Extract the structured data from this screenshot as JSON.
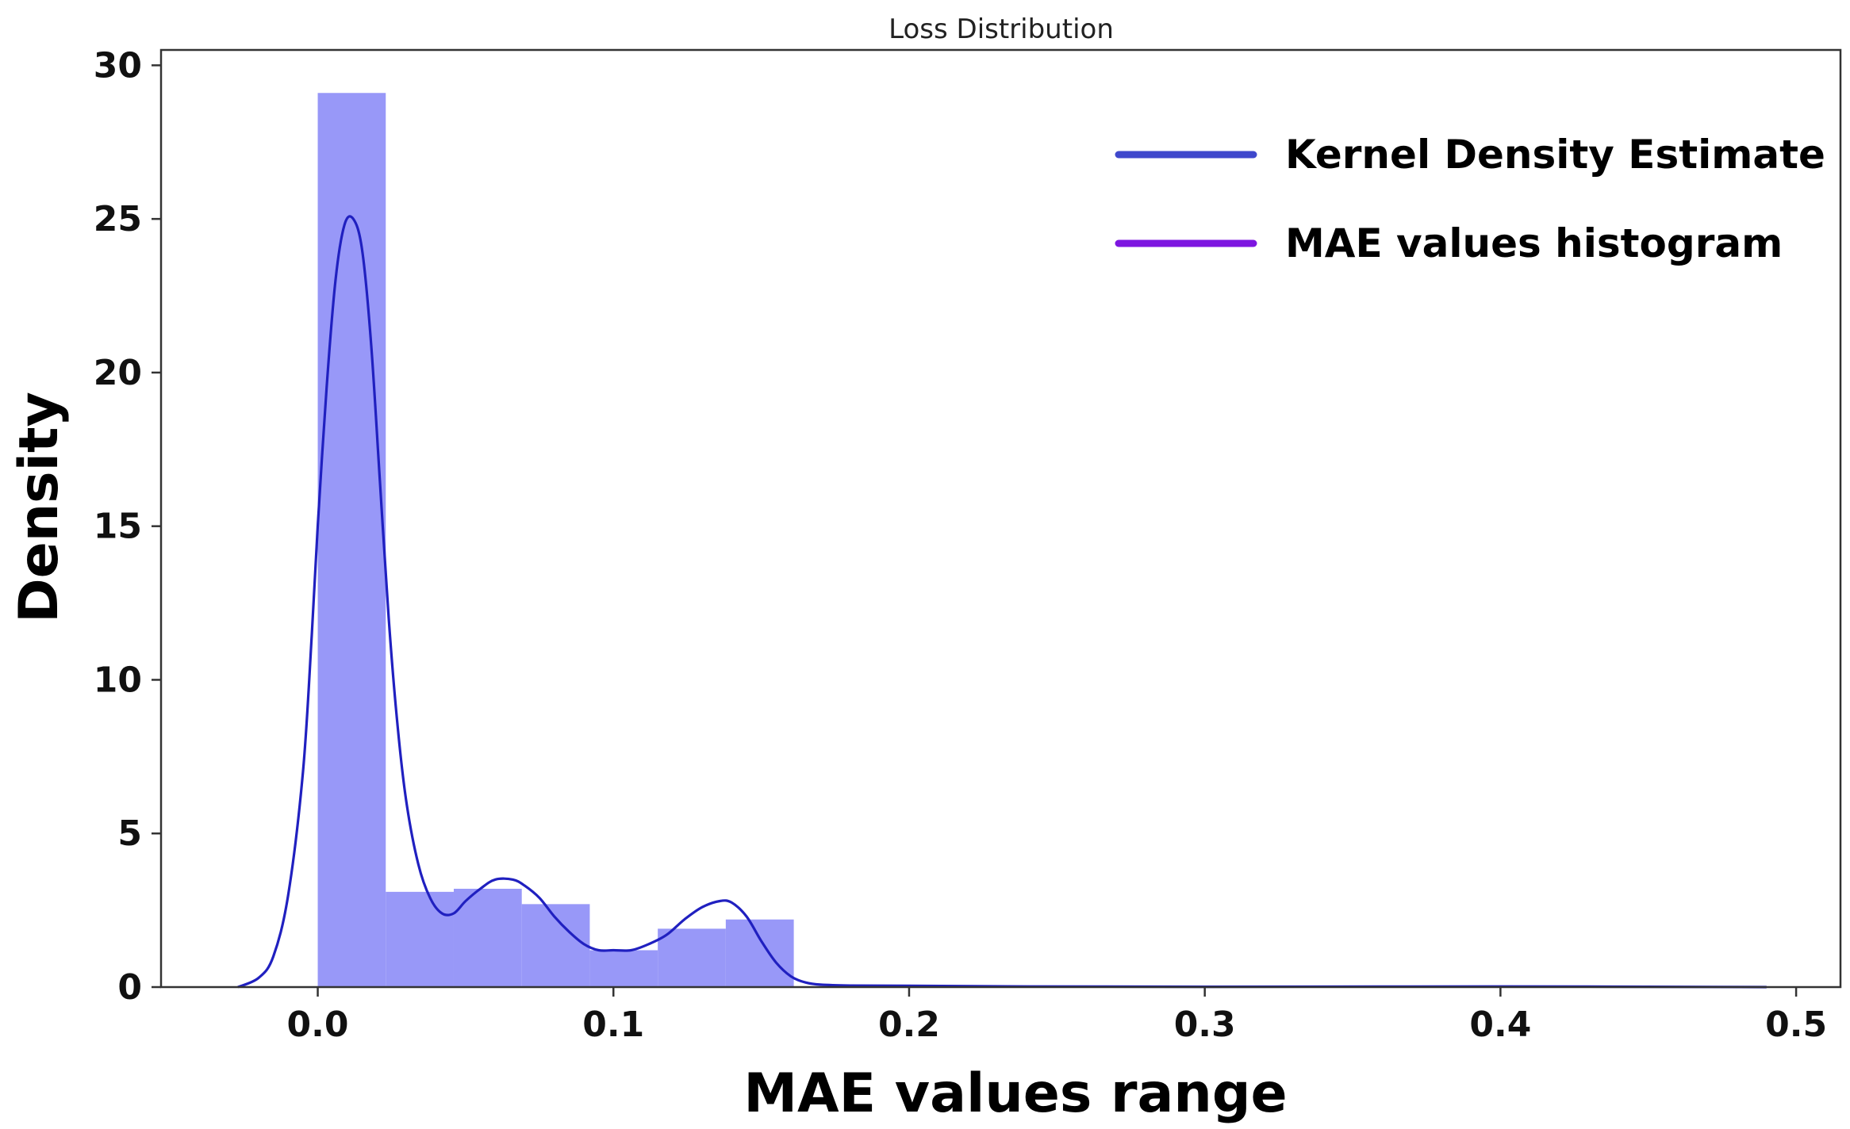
{
  "chart_data": {
    "type": "bar",
    "title": "Loss Distribution",
    "xlabel": "MAE values range",
    "ylabel": "Density",
    "xlim": [
      -0.053,
      0.515
    ],
    "ylim": [
      0,
      30.5
    ],
    "xticks": [
      0.0,
      0.1,
      0.2,
      0.3,
      0.4,
      0.5
    ],
    "xtick_labels": [
      "0.0",
      "0.1",
      "0.2",
      "0.3",
      "0.4",
      "0.5"
    ],
    "yticks": [
      0,
      5,
      10,
      15,
      20,
      25,
      30
    ],
    "ytick_labels": [
      "0",
      "5",
      "10",
      "15",
      "20",
      "25",
      "30"
    ],
    "grid": false,
    "legend_position": "top-right",
    "colors": {
      "histogram": "#9898f8",
      "kde": "#2020c0",
      "legend_kde": "#3f48cc",
      "legend_hist": "#7d16e0"
    },
    "legend": [
      {
        "label": "Kernel Density Estimate",
        "color": "#3f48cc"
      },
      {
        "label": "MAE values histogram",
        "color": "#7d16e0"
      }
    ],
    "histogram": {
      "name": "MAE values histogram",
      "bin_edges": [
        0.0,
        0.023,
        0.046,
        0.069,
        0.092,
        0.115,
        0.138,
        0.161
      ],
      "values": [
        29.1,
        3.1,
        3.2,
        2.7,
        1.2,
        1.9,
        2.2
      ]
    },
    "kde": {
      "name": "Kernel Density Estimate",
      "x": [
        -0.027,
        -0.02,
        -0.015,
        -0.01,
        -0.005,
        -0.002,
        0.0,
        0.003,
        0.006,
        0.009,
        0.012,
        0.015,
        0.018,
        0.021,
        0.024,
        0.027,
        0.03,
        0.034,
        0.038,
        0.042,
        0.046,
        0.05,
        0.055,
        0.06,
        0.066,
        0.07,
        0.075,
        0.08,
        0.085,
        0.09,
        0.095,
        0.1,
        0.106,
        0.112,
        0.118,
        0.124,
        0.13,
        0.136,
        0.14,
        0.145,
        0.15,
        0.155,
        0.16,
        0.165,
        0.17,
        0.18,
        0.2,
        0.24,
        0.3,
        0.4,
        0.49
      ],
      "y": [
        0.0,
        0.3,
        1.0,
        3.0,
        7.0,
        11.5,
        15.0,
        19.5,
        23.0,
        24.8,
        25.0,
        24.0,
        21.0,
        16.5,
        12.0,
        8.5,
        6.0,
        4.0,
        2.9,
        2.4,
        2.4,
        2.8,
        3.2,
        3.5,
        3.5,
        3.3,
        2.9,
        2.3,
        1.8,
        1.4,
        1.2,
        1.2,
        1.2,
        1.4,
        1.7,
        2.2,
        2.6,
        2.8,
        2.75,
        2.3,
        1.5,
        0.8,
        0.35,
        0.15,
        0.08,
        0.05,
        0.04,
        0.02,
        0.01,
        0.02,
        0.0
      ]
    }
  }
}
